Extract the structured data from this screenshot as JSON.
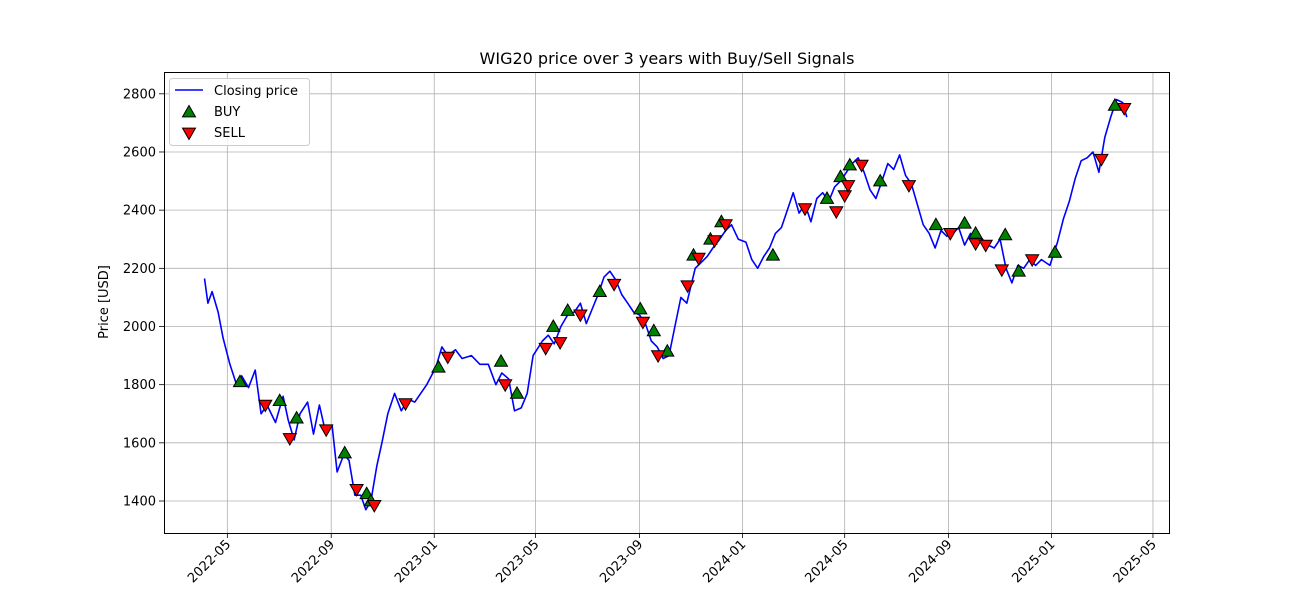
{
  "chart_data": {
    "type": "line",
    "title": "WIG20 price over 3 years with Buy/Sell Signals",
    "xlabel": "",
    "ylabel": "Price [USD]",
    "xlim": [
      "2022-02-15",
      "2025-05-20"
    ],
    "ylim": [
      1290,
      2875
    ],
    "grid": true,
    "legend_position": "top-left",
    "x_ticks": [
      "2022-05",
      "2022-09",
      "2023-01",
      "2023-05",
      "2023-09",
      "2024-01",
      "2024-05",
      "2024-09",
      "2025-01",
      "2025-05"
    ],
    "y_ticks": [
      1400,
      1600,
      1800,
      2000,
      2200,
      2400,
      2600,
      2800
    ],
    "series": [
      {
        "name": "Closing price",
        "color": "#0000ff",
        "x": [
          "2022-04-04",
          "2022-04-08",
          "2022-04-13",
          "2022-04-20",
          "2022-04-26",
          "2022-05-04",
          "2022-05-12",
          "2022-05-18",
          "2022-05-26",
          "2022-06-03",
          "2022-06-10",
          "2022-06-17",
          "2022-06-27",
          "2022-07-06",
          "2022-07-12",
          "2022-07-19",
          "2022-07-26",
          "2022-08-04",
          "2022-08-11",
          "2022-08-18",
          "2022-08-25",
          "2022-09-02",
          "2022-09-08",
          "2022-09-16",
          "2022-09-22",
          "2022-09-29",
          "2022-10-06",
          "2022-10-12",
          "2022-10-18",
          "2022-10-25",
          "2022-10-31",
          "2022-11-07",
          "2022-11-15",
          "2022-11-23",
          "2022-12-01",
          "2022-12-09",
          "2022-12-16",
          "2022-12-23",
          "2023-01-03",
          "2023-01-10",
          "2023-01-17",
          "2023-01-26",
          "2023-02-03",
          "2023-02-14",
          "2023-02-24",
          "2023-03-06",
          "2023-03-15",
          "2023-03-22",
          "2023-03-30",
          "2023-04-06",
          "2023-04-14",
          "2023-04-21",
          "2023-04-28",
          "2023-05-09",
          "2023-05-16",
          "2023-05-23",
          "2023-05-31",
          "2023-06-08",
          "2023-06-16",
          "2023-06-23",
          "2023-06-30",
          "2023-07-07",
          "2023-07-14",
          "2023-07-21",
          "2023-07-28",
          "2023-08-04",
          "2023-08-11",
          "2023-08-18",
          "2023-08-25",
          "2023-09-01",
          "2023-09-08",
          "2023-09-15",
          "2023-09-22",
          "2023-09-29",
          "2023-10-06",
          "2023-10-13",
          "2023-10-20",
          "2023-10-27",
          "2023-11-06",
          "2023-11-13",
          "2023-11-20",
          "2023-11-27",
          "2023-12-05",
          "2023-12-12",
          "2023-12-19",
          "2023-12-27",
          "2024-01-05",
          "2024-01-12",
          "2024-01-19",
          "2024-01-26",
          "2024-02-02",
          "2024-02-09",
          "2024-02-16",
          "2024-02-23",
          "2024-03-01",
          "2024-03-08",
          "2024-03-15",
          "2024-03-22",
          "2024-03-29",
          "2024-04-05",
          "2024-04-12",
          "2024-04-19",
          "2024-04-26",
          "2024-05-03",
          "2024-05-10",
          "2024-05-17",
          "2024-05-24",
          "2024-05-31",
          "2024-06-07",
          "2024-06-14",
          "2024-06-21",
          "2024-06-28",
          "2024-07-05",
          "2024-07-12",
          "2024-07-19",
          "2024-07-26",
          "2024-08-02",
          "2024-08-09",
          "2024-08-16",
          "2024-08-23",
          "2024-08-30",
          "2024-09-06",
          "2024-09-13",
          "2024-09-20",
          "2024-09-27",
          "2024-10-04",
          "2024-10-11",
          "2024-10-18",
          "2024-10-25",
          "2024-11-01",
          "2024-11-08",
          "2024-11-15",
          "2024-11-22",
          "2024-11-29",
          "2024-12-06",
          "2024-12-13",
          "2024-12-20",
          "2024-12-30",
          "2025-01-08",
          "2025-01-15",
          "2025-01-22",
          "2025-01-29",
          "2025-02-05",
          "2025-02-12",
          "2025-02-19",
          "2025-02-26",
          "2025-03-05",
          "2025-03-12",
          "2025-03-19",
          "2025-03-26",
          "2025-03-31"
        ],
        "y": [
          2165,
          2080,
          2120,
          2050,
          1960,
          1870,
          1800,
          1830,
          1790,
          1850,
          1700,
          1730,
          1670,
          1760,
          1680,
          1610,
          1700,
          1740,
          1630,
          1730,
          1640,
          1660,
          1500,
          1560,
          1540,
          1420,
          1420,
          1370,
          1400,
          1520,
          1600,
          1700,
          1770,
          1710,
          1750,
          1740,
          1770,
          1800,
          1860,
          1930,
          1900,
          1920,
          1890,
          1900,
          1870,
          1870,
          1800,
          1840,
          1820,
          1710,
          1720,
          1770,
          1900,
          1950,
          1970,
          1940,
          2000,
          2040,
          2050,
          2080,
          2010,
          2060,
          2110,
          2170,
          2190,
          2160,
          2110,
          2080,
          2050,
          2040,
          2010,
          1950,
          1930,
          1890,
          1900,
          2000,
          2100,
          2080,
          2200,
          2220,
          2240,
          2270,
          2300,
          2330,
          2350,
          2300,
          2290,
          2230,
          2200,
          2240,
          2270,
          2320,
          2340,
          2400,
          2460,
          2390,
          2420,
          2360,
          2440,
          2460,
          2430,
          2480,
          2500,
          2530,
          2560,
          2580,
          2530,
          2470,
          2440,
          2500,
          2560,
          2540,
          2590,
          2520,
          2490,
          2420,
          2350,
          2320,
          2270,
          2330,
          2310,
          2320,
          2340,
          2280,
          2320,
          2290,
          2300,
          2280,
          2270,
          2300,
          2200,
          2150,
          2210,
          2200,
          2230,
          2210,
          2230,
          2210,
          2290,
          2370,
          2430,
          2510,
          2570,
          2580,
          2600,
          2530,
          2650,
          2720,
          2780,
          2770,
          2720
        ]
      },
      {
        "name": "BUY",
        "color": "#008000",
        "x": [
          "2022-05-16",
          "2022-07-02",
          "2022-07-22",
          "2022-09-17",
          "2022-10-13",
          "2022-10-18",
          "2023-01-06",
          "2023-03-21",
          "2023-04-09",
          "2023-05-22",
          "2023-06-08",
          "2023-07-16",
          "2023-09-02",
          "2023-09-18",
          "2023-10-04",
          "2023-11-04",
          "2023-11-24",
          "2023-12-07",
          "2024-02-06",
          "2024-04-10",
          "2024-04-26",
          "2024-05-07",
          "2024-06-12",
          "2024-08-17",
          "2024-09-20",
          "2024-10-03",
          "2024-11-07",
          "2024-11-23",
          "2025-01-05",
          "2025-03-17"
        ],
        "y": [
          1810,
          1745,
          1685,
          1565,
          1425,
          1400,
          1860,
          1880,
          1770,
          2000,
          2055,
          2120,
          2060,
          1985,
          1915,
          2245,
          2300,
          2360,
          2245,
          2440,
          2515,
          2555,
          2500,
          2350,
          2355,
          2320,
          2315,
          2190,
          2255,
          2760
        ]
      },
      {
        "name": "SELL",
        "color": "#ff0000",
        "x": [
          "2022-06-15",
          "2022-07-14",
          "2022-08-26",
          "2022-10-01",
          "2022-10-22",
          "2022-11-28",
          "2023-01-17",
          "2023-03-26",
          "2023-05-13",
          "2023-05-30",
          "2023-06-23",
          "2023-08-02",
          "2023-09-05",
          "2023-09-23",
          "2023-10-28",
          "2023-11-10",
          "2023-11-29",
          "2023-12-12",
          "2024-03-15",
          "2024-04-21",
          "2024-05-01",
          "2024-05-05",
          "2024-05-21",
          "2024-07-16",
          "2024-09-03",
          "2024-10-03",
          "2024-10-15",
          "2024-11-03",
          "2024-12-09",
          "2025-03-01",
          "2025-03-28"
        ],
        "y": [
          1730,
          1615,
          1645,
          1440,
          1385,
          1735,
          1895,
          1800,
          1925,
          1945,
          2040,
          2145,
          2015,
          1900,
          2140,
          2235,
          2295,
          2350,
          2405,
          2395,
          2450,
          2485,
          2555,
          2485,
          2320,
          2285,
          2280,
          2195,
          2230,
          2575,
          2750
        ]
      }
    ]
  }
}
